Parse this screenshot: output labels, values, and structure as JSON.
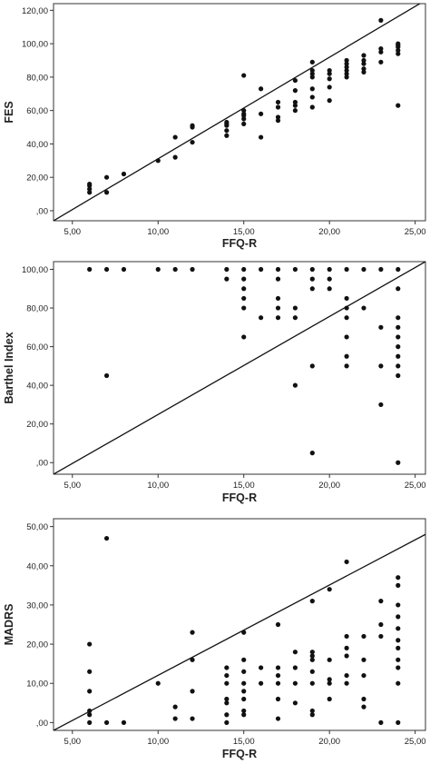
{
  "chart_data": [
    {
      "type": "scatter",
      "xlabel": "FFQ-R",
      "ylabel": "FES",
      "xlim": [
        3.9,
        25.6
      ],
      "ylim": [
        -6,
        124
      ],
      "xticks": [
        "5,00",
        "10,00",
        "15,00",
        "20,00",
        "25,00"
      ],
      "xtick_values": [
        5,
        10,
        15,
        20,
        25
      ],
      "yticks": [
        ",00",
        "20,00",
        "40,00",
        "60,00",
        "80,00",
        "100,00",
        "120,00"
      ],
      "ytick_values": [
        0,
        20,
        40,
        60,
        80,
        100,
        120
      ],
      "reference_line": [
        [
          3.9,
          -6
        ],
        [
          25.6,
          126
        ]
      ],
      "grid": false,
      "points": [
        [
          6,
          11
        ],
        [
          6,
          13
        ],
        [
          6,
          15
        ],
        [
          6,
          16
        ],
        [
          7,
          11
        ],
        [
          7,
          20
        ],
        [
          8,
          22
        ],
        [
          10,
          30
        ],
        [
          11,
          32
        ],
        [
          11,
          44
        ],
        [
          12,
          41
        ],
        [
          12,
          50
        ],
        [
          12,
          51
        ],
        [
          14,
          45
        ],
        [
          14,
          48
        ],
        [
          14,
          51
        ],
        [
          14,
          52
        ],
        [
          14,
          53
        ],
        [
          15,
          52
        ],
        [
          15,
          55
        ],
        [
          15,
          57
        ],
        [
          15,
          58
        ],
        [
          15,
          60
        ],
        [
          15,
          81
        ],
        [
          16,
          44
        ],
        [
          16,
          58
        ],
        [
          16,
          73
        ],
        [
          17,
          54
        ],
        [
          17,
          56
        ],
        [
          17,
          62
        ],
        [
          17,
          65
        ],
        [
          18,
          60
        ],
        [
          18,
          63
        ],
        [
          18,
          65
        ],
        [
          18,
          72
        ],
        [
          18,
          78
        ],
        [
          19,
          62
        ],
        [
          19,
          68
        ],
        [
          19,
          73
        ],
        [
          19,
          80
        ],
        [
          19,
          82
        ],
        [
          19,
          84
        ],
        [
          19,
          89
        ],
        [
          20,
          66
        ],
        [
          20,
          74
        ],
        [
          20,
          79
        ],
        [
          20,
          82
        ],
        [
          20,
          84
        ],
        [
          21,
          80
        ],
        [
          21,
          82
        ],
        [
          21,
          84
        ],
        [
          21,
          86
        ],
        [
          21,
          88
        ],
        [
          21,
          90
        ],
        [
          22,
          83
        ],
        [
          22,
          85
        ],
        [
          22,
          88
        ],
        [
          22,
          90
        ],
        [
          22,
          93
        ],
        [
          23,
          89
        ],
        [
          23,
          95
        ],
        [
          23,
          97
        ],
        [
          23,
          114
        ],
        [
          24,
          63
        ],
        [
          24,
          94
        ],
        [
          24,
          96
        ],
        [
          24,
          98
        ],
        [
          24,
          99
        ],
        [
          24,
          100
        ]
      ]
    },
    {
      "type": "scatter",
      "xlabel": "FFQ-R",
      "ylabel": "Barthel Index",
      "xlim": [
        3.9,
        25.6
      ],
      "ylim": [
        -6,
        104
      ],
      "xticks": [
        "5,00",
        "10,00",
        "15,00",
        "20,00",
        "25,00"
      ],
      "xtick_values": [
        5,
        10,
        15,
        20,
        25
      ],
      "yticks": [
        ",00",
        "20,00",
        "40,00",
        "60,00",
        "80,00",
        "100,00"
      ],
      "ytick_values": [
        0,
        20,
        40,
        60,
        80,
        100
      ],
      "reference_line": [
        [
          3.9,
          -6
        ],
        [
          25.6,
          104
        ]
      ],
      "grid": false,
      "points": [
        [
          6,
          100
        ],
        [
          7,
          100
        ],
        [
          7,
          45
        ],
        [
          8,
          100
        ],
        [
          10,
          100
        ],
        [
          11,
          100
        ],
        [
          12,
          100
        ],
        [
          14,
          100
        ],
        [
          14,
          95
        ],
        [
          15,
          100
        ],
        [
          15,
          95
        ],
        [
          15,
          90
        ],
        [
          15,
          85
        ],
        [
          15,
          80
        ],
        [
          15,
          65
        ],
        [
          16,
          100
        ],
        [
          16,
          75
        ],
        [
          17,
          100
        ],
        [
          17,
          95
        ],
        [
          17,
          85
        ],
        [
          17,
          80
        ],
        [
          17,
          75
        ],
        [
          18,
          100
        ],
        [
          18,
          80
        ],
        [
          18,
          75
        ],
        [
          18,
          40
        ],
        [
          19,
          100
        ],
        [
          19,
          95
        ],
        [
          19,
          90
        ],
        [
          19,
          50
        ],
        [
          19,
          5
        ],
        [
          20,
          100
        ],
        [
          20,
          95
        ],
        [
          20,
          90
        ],
        [
          21,
          100
        ],
        [
          21,
          85
        ],
        [
          21,
          80
        ],
        [
          21,
          75
        ],
        [
          21,
          65
        ],
        [
          21,
          55
        ],
        [
          21,
          50
        ],
        [
          22,
          100
        ],
        [
          22,
          80
        ],
        [
          23,
          100
        ],
        [
          23,
          70
        ],
        [
          23,
          50
        ],
        [
          23,
          30
        ],
        [
          24,
          100
        ],
        [
          24,
          90
        ],
        [
          24,
          75
        ],
        [
          24,
          70
        ],
        [
          24,
          65
        ],
        [
          24,
          60
        ],
        [
          24,
          55
        ],
        [
          24,
          50
        ],
        [
          24,
          45
        ],
        [
          24,
          0
        ]
      ]
    },
    {
      "type": "scatter",
      "xlabel": "FFQ-R",
      "ylabel": "MADRS",
      "xlim": [
        3.9,
        25.6
      ],
      "ylim": [
        -2,
        52
      ],
      "xticks": [
        "5,00",
        "10,00",
        "15,00",
        "20,00",
        "25,00"
      ],
      "xtick_values": [
        5,
        10,
        15,
        20,
        25
      ],
      "yticks": [
        ",00",
        "10,00",
        "20,00",
        "30,00",
        "40,00",
        "50,00"
      ],
      "ytick_values": [
        0,
        10,
        20,
        30,
        40,
        50
      ],
      "reference_line": [
        [
          3.9,
          -2
        ],
        [
          25.6,
          48
        ]
      ],
      "grid": false,
      "points": [
        [
          6,
          0
        ],
        [
          6,
          2
        ],
        [
          6,
          3
        ],
        [
          6,
          8
        ],
        [
          6,
          13
        ],
        [
          6,
          20
        ],
        [
          7,
          0
        ],
        [
          7,
          47
        ],
        [
          8,
          0
        ],
        [
          10,
          10
        ],
        [
          11,
          1
        ],
        [
          11,
          4
        ],
        [
          12,
          1
        ],
        [
          12,
          8
        ],
        [
          12,
          16
        ],
        [
          12,
          23
        ],
        [
          14,
          0
        ],
        [
          14,
          2
        ],
        [
          14,
          5
        ],
        [
          14,
          6
        ],
        [
          14,
          10
        ],
        [
          14,
          12
        ],
        [
          14,
          14
        ],
        [
          15,
          2
        ],
        [
          15,
          3
        ],
        [
          15,
          6
        ],
        [
          15,
          8
        ],
        [
          15,
          10
        ],
        [
          15,
          13
        ],
        [
          15,
          16
        ],
        [
          15,
          23
        ],
        [
          16,
          10
        ],
        [
          16,
          14
        ],
        [
          17,
          1
        ],
        [
          17,
          6
        ],
        [
          17,
          10
        ],
        [
          17,
          12
        ],
        [
          17,
          14
        ],
        [
          17,
          25
        ],
        [
          18,
          5
        ],
        [
          18,
          10
        ],
        [
          18,
          14
        ],
        [
          18,
          18
        ],
        [
          19,
          2
        ],
        [
          19,
          3
        ],
        [
          19,
          10
        ],
        [
          19,
          13
        ],
        [
          19,
          16
        ],
        [
          19,
          17
        ],
        [
          19,
          18
        ],
        [
          19,
          31
        ],
        [
          20,
          6
        ],
        [
          20,
          10
        ],
        [
          20,
          11
        ],
        [
          20,
          16
        ],
        [
          20,
          34
        ],
        [
          21,
          10
        ],
        [
          21,
          12
        ],
        [
          21,
          17
        ],
        [
          21,
          19
        ],
        [
          21,
          22
        ],
        [
          21,
          41
        ],
        [
          22,
          4
        ],
        [
          22,
          6
        ],
        [
          22,
          12
        ],
        [
          22,
          16
        ],
        [
          22,
          22
        ],
        [
          23,
          0
        ],
        [
          23,
          22
        ],
        [
          23,
          25
        ],
        [
          23,
          31
        ],
        [
          24,
          0
        ],
        [
          24,
          10
        ],
        [
          24,
          14
        ],
        [
          24,
          16
        ],
        [
          24,
          19
        ],
        [
          24,
          21
        ],
        [
          24,
          24
        ],
        [
          24,
          27
        ],
        [
          24,
          30
        ],
        [
          24,
          35
        ],
        [
          24,
          37
        ]
      ]
    }
  ]
}
